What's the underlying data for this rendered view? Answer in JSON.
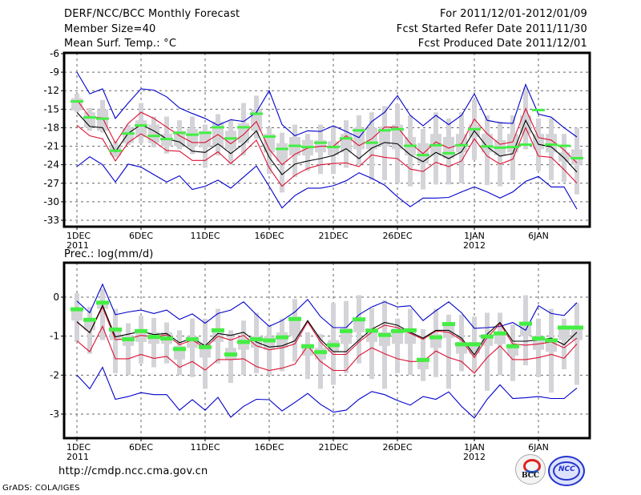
{
  "header": {
    "title": "DERF/NCC/BCC Monthly Forecast",
    "member_size": "Member Size=40",
    "variable": "Mean Surf. Temp.: °C",
    "period": "For 2011/12/01-2012/01/09",
    "started": "Fcst Started Refer Date 2011/11/30",
    "produced": "Fcst Produced Date 2011/12/01"
  },
  "footer": {
    "url": "http://cmdp.ncc.cma.gov.cn",
    "credit": "GrADS: COLA/IGES",
    "logo_bcc": "BCC",
    "logo_ncc": "NCC"
  },
  "colors": {
    "max_min": "#0000cc",
    "spread": "#dd1133",
    "mean": "#000000",
    "marker": "#44ee44",
    "box": "#d4d4d8"
  },
  "chart_data": [
    {
      "type": "line",
      "title": "Mean Surf. Temp.: °C",
      "xlabel": "",
      "ylabel": "",
      "ylim": [
        -33,
        -6
      ],
      "yticks": [
        -6,
        -9,
        -12,
        -15,
        -18,
        -21,
        -24,
        -27,
        -30,
        -33
      ],
      "ytick_labels": [
        "-6",
        "-9",
        "-12",
        "-15",
        "-18",
        "-21",
        "-24",
        "-27",
        "-30",
        "-33"
      ],
      "x_start": "2011-12-01",
      "x_days": 40,
      "xticks": [
        1,
        6,
        11,
        16,
        21,
        26,
        32,
        37
      ],
      "xtick_labels": [
        "1DEC",
        "6DEC",
        "11DEC",
        "16DEC",
        "21DEC",
        "26DEC",
        "1JAN",
        "6JAN"
      ],
      "xtick_sublabels": [
        "2011",
        "",
        "",
        "",
        "",
        "",
        "2012",
        ""
      ],
      "grid": true,
      "series": [
        {
          "name": "max",
          "color": "#0000cc",
          "values": [
            -9.0,
            -12.5,
            -11.7,
            -16.5,
            -14.0,
            -11.7,
            -11.9,
            -13.0,
            -14.8,
            -15.7,
            -16.5,
            -17.6,
            -16.7,
            -17.0,
            -15.5,
            -12.0,
            -17.5,
            -19.3,
            -18.5,
            -18.6,
            -17.7,
            -18.6,
            -19.6,
            -17.0,
            -15.5,
            -12.8,
            -16.0,
            -17.7,
            -16.0,
            -17.5,
            -16.0,
            -12.5,
            -16.8,
            -17.2,
            -17.3,
            -11.0,
            -15.8,
            -16.3,
            -18.0,
            -19.5
          ]
        },
        {
          "name": "upper",
          "color": "#dd1133",
          "values": [
            -13.5,
            -16.3,
            -16.4,
            -20.5,
            -17.3,
            -15.5,
            -16.5,
            -17.9,
            -19.3,
            -20.4,
            -20.4,
            -19.1,
            -20.6,
            -19.1,
            -17.0,
            -21.5,
            -24.0,
            -22.3,
            -21.3,
            -21.0,
            -21.0,
            -19.3,
            -20.9,
            -19.8,
            -17.9,
            -17.9,
            -20.5,
            -22.2,
            -20.3,
            -21.3,
            -20.6,
            -16.6,
            -19.0,
            -20.7,
            -20.3,
            -14.9,
            -19.6,
            -20.0,
            -21.6,
            -23.7
          ]
        },
        {
          "name": "mean",
          "color": "#000000",
          "values": [
            -15.5,
            -17.8,
            -18.0,
            -21.9,
            -18.9,
            -17.5,
            -18.5,
            -19.8,
            -20.3,
            -21.8,
            -22.0,
            -20.6,
            -22.2,
            -20.6,
            -18.5,
            -22.8,
            -25.6,
            -23.9,
            -23.4,
            -23.0,
            -22.5,
            -21.4,
            -23.0,
            -21.3,
            -20.4,
            -20.6,
            -22.4,
            -23.5,
            -22.0,
            -23.0,
            -21.9,
            -18.5,
            -21.1,
            -22.6,
            -22.2,
            -16.8,
            -20.7,
            -21.1,
            -22.9,
            -25.2
          ]
        },
        {
          "name": "lower",
          "color": "#dd1133",
          "values": [
            -17.6,
            -19.3,
            -19.8,
            -23.4,
            -20.4,
            -19.0,
            -20.2,
            -21.7,
            -21.8,
            -23.3,
            -23.3,
            -21.9,
            -23.8,
            -22.0,
            -20.0,
            -24.5,
            -27.5,
            -25.7,
            -24.6,
            -24.0,
            -23.8,
            -23.7,
            -24.3,
            -22.4,
            -22.8,
            -23.0,
            -24.7,
            -25.1,
            -23.6,
            -24.3,
            -23.4,
            -19.8,
            -22.6,
            -23.9,
            -23.1,
            -18.0,
            -22.6,
            -22.8,
            -24.8,
            -27.0
          ]
        },
        {
          "name": "min",
          "color": "#0000cc",
          "values": [
            -24.3,
            -22.7,
            -24.0,
            -26.8,
            -23.9,
            -24.4,
            -25.6,
            -26.8,
            -25.8,
            -28.0,
            -27.5,
            -26.5,
            -27.8,
            -26.0,
            -24.2,
            -27.5,
            -31.0,
            -29.0,
            -27.8,
            -27.8,
            -27.4,
            -26.6,
            -25.3,
            -26.2,
            -27.3,
            -29.2,
            -30.8,
            -29.4,
            -29.4,
            -29.3,
            -28.4,
            -27.6,
            -28.4,
            -29.4,
            -28.4,
            -26.7,
            -25.9,
            -27.6,
            -27.6,
            -31.2
          ]
        }
      ],
      "markers": {
        "name": "observed",
        "color": "#44ee44",
        "values": [
          -13.8,
          -16.4,
          -16.6,
          -21.8,
          -19.0,
          -17.7,
          -19.4,
          -19.9,
          -18.9,
          -19.2,
          -18.9,
          -18.0,
          -19.8,
          -18.0,
          -15.8,
          -19.5,
          -21.5,
          -21.0,
          -21.2,
          -20.5,
          -21.2,
          -19.8,
          -18.5,
          -20.5,
          -18.5,
          -18.3,
          -21.0,
          -22.5,
          -20.9,
          -22.2,
          -20.9,
          -18.3,
          -21.1,
          -21.3,
          -21.2,
          -20.8,
          -15.2,
          -20.8,
          -21.0,
          -23.0
        ]
      },
      "boxes": {
        "color": "#d4d4d8",
        "whisker_high": [
          -12.5,
          -14.8,
          -13.5,
          -20.2,
          -17.5,
          -14.0,
          -16.2,
          -16.2,
          -16.8,
          -16.2,
          -17.5,
          -15.8,
          -16.8,
          -14.0,
          -12.8,
          -18.0,
          -18.8,
          -17.5,
          -19.0,
          -17.5,
          -18.0,
          -16.8,
          -16.0,
          -15.5,
          -14.5,
          -14.2,
          -16.0,
          -18.2,
          -15.5,
          -16.5,
          -15.5,
          -13.5,
          -16.0,
          -17.0,
          -16.0,
          -11.5,
          -16.5,
          -16.5,
          -19.0,
          -18.0
        ],
        "q75": [
          -13.2,
          -15.5,
          -15.0,
          -20.8,
          -18.0,
          -16.8,
          -17.5,
          -19.0,
          -18.5,
          -18.2,
          -18.5,
          -17.0,
          -18.5,
          -17.3,
          -15.0,
          -19.0,
          -20.5,
          -19.5,
          -20.0,
          -20.0,
          -20.2,
          -19.0,
          -18.0,
          -18.0,
          -17.8,
          -17.5,
          -19.5,
          -20.5,
          -19.0,
          -19.5,
          -19.0,
          -17.5,
          -19.0,
          -20.0,
          -19.0,
          -16.0,
          -19.0,
          -19.0,
          -22.0,
          -21.5
        ],
        "q25": [
          -15.2,
          -18.0,
          -18.5,
          -22.5,
          -20.5,
          -19.5,
          -20.5,
          -21.0,
          -21.0,
          -21.0,
          -21.2,
          -21.0,
          -21.5,
          -20.5,
          -18.5,
          -22.0,
          -23.5,
          -22.5,
          -22.5,
          -22.0,
          -22.5,
          -22.0,
          -21.5,
          -21.5,
          -21.0,
          -21.5,
          -22.5,
          -23.8,
          -22.5,
          -23.0,
          -22.0,
          -19.5,
          -22.0,
          -22.5,
          -22.0,
          -19.0,
          -21.5,
          -22.0,
          -23.5,
          -24.0
        ],
        "whisker_low": [
          -15.5,
          -18.5,
          -18.8,
          -22.8,
          -20.8,
          -20.5,
          -21.2,
          -22.2,
          -21.5,
          -22.3,
          -24.5,
          -22.5,
          -24.0,
          -22.5,
          -19.8,
          -25.5,
          -28.5,
          -26.0,
          -25.0,
          -25.5,
          -25.5,
          -24.5,
          -24.0,
          -26.5,
          -26.5,
          -27.0,
          -27.5,
          -28.0,
          -27.2,
          -27.2,
          -27.0,
          -23.2,
          -27.3,
          -27.5,
          -26.5,
          -21.5,
          -25.0,
          -26.5,
          -26.8,
          -28.8
        ]
      }
    },
    {
      "type": "line",
      "title": "Prec.: log(mm/d)",
      "xlabel": "",
      "ylabel": "",
      "ylim": [
        -3.6,
        0.8
      ],
      "yticks": [
        0,
        -1,
        -2,
        -3
      ],
      "ytick_labels": [
        "0",
        "-1",
        "-2",
        "-3"
      ],
      "x_start": "2011-12-01",
      "x_days": 40,
      "xticks": [
        1,
        6,
        11,
        16,
        21,
        26,
        32,
        37
      ],
      "xtick_labels": [
        "1DEC",
        "6DEC",
        "11DEC",
        "16DEC",
        "21DEC",
        "26DEC",
        "1JAN",
        "6JAN"
      ],
      "xtick_sublabels": [
        "2011",
        "",
        "",
        "",
        "",
        "",
        "2012",
        ""
      ],
      "grid": true,
      "series": [
        {
          "name": "max",
          "color": "#0000cc",
          "values": [
            -0.1,
            -0.4,
            0.33,
            -0.45,
            -0.38,
            -0.33,
            -0.42,
            -0.33,
            -0.57,
            -0.43,
            -0.67,
            -0.42,
            -0.33,
            -0.12,
            -0.45,
            -0.75,
            -0.6,
            -0.38,
            -0.06,
            -0.5,
            -0.78,
            -0.78,
            -0.45,
            -0.25,
            -0.12,
            -0.25,
            -0.22,
            -0.6,
            -0.35,
            -0.12,
            -0.4,
            -0.8,
            -0.78,
            -0.75,
            -0.65,
            -0.85,
            -0.22,
            -0.42,
            -0.47,
            -0.14
          ]
        },
        {
          "name": "upper",
          "color": "#dd1133",
          "values": [
            -0.64,
            -0.91,
            -0.25,
            -1.09,
            -1.07,
            -0.98,
            -1.02,
            -0.97,
            -1.22,
            -1.1,
            -1.3,
            -1.0,
            -1.1,
            -0.98,
            -1.25,
            -1.35,
            -1.3,
            -1.2,
            -0.63,
            -1.15,
            -1.47,
            -1.47,
            -1.15,
            -0.9,
            -0.72,
            -0.78,
            -0.93,
            -1.08,
            -0.87,
            -0.9,
            -1.1,
            -1.55,
            -1.04,
            -0.68,
            -1.2,
            -1.23,
            -1.2,
            -1.15,
            -1.3,
            -1.05
          ]
        },
        {
          "name": "mean",
          "color": "#000000",
          "values": [
            -0.63,
            -0.91,
            -0.21,
            -1.02,
            -0.95,
            -0.88,
            -0.96,
            -0.93,
            -1.17,
            -1.05,
            -1.25,
            -0.93,
            -0.98,
            -0.9,
            -1.15,
            -1.28,
            -1.25,
            -1.12,
            -0.6,
            -1.08,
            -1.4,
            -1.4,
            -1.1,
            -0.82,
            -0.65,
            -0.72,
            -0.9,
            -1.05,
            -0.85,
            -0.85,
            -1.05,
            -1.48,
            -0.95,
            -0.65,
            -1.13,
            -1.13,
            -1.1,
            -1.05,
            -1.22,
            -0.9
          ]
        },
        {
          "name": "lower",
          "color": "#dd1133",
          "values": [
            -1.12,
            -1.4,
            -0.75,
            -1.58,
            -1.58,
            -1.47,
            -1.57,
            -1.52,
            -1.8,
            -1.65,
            -1.87,
            -1.6,
            -1.6,
            -1.58,
            -1.78,
            -1.88,
            -1.82,
            -1.72,
            -1.25,
            -1.65,
            -1.88,
            -1.88,
            -1.5,
            -1.3,
            -1.45,
            -1.58,
            -1.65,
            -1.65,
            -1.38,
            -1.55,
            -1.65,
            -1.95,
            -1.55,
            -1.25,
            -1.6,
            -1.6,
            -1.55,
            -1.47,
            -1.57,
            -1.2
          ]
        },
        {
          "name": "min",
          "color": "#0000cc",
          "values": [
            -2.0,
            -2.35,
            -1.8,
            -2.62,
            -2.55,
            -2.45,
            -2.5,
            -2.5,
            -2.9,
            -2.63,
            -2.9,
            -2.57,
            -3.08,
            -2.8,
            -2.62,
            -2.63,
            -2.92,
            -2.7,
            -2.47,
            -2.75,
            -2.95,
            -2.9,
            -2.62,
            -2.42,
            -2.5,
            -2.65,
            -2.77,
            -2.55,
            -2.62,
            -2.43,
            -2.8,
            -3.1,
            -2.62,
            -2.25,
            -2.6,
            -2.58,
            -2.55,
            -2.6,
            -2.6,
            -2.33
          ]
        }
      ],
      "markers": {
        "name": "observed",
        "color": "#44ee44",
        "values": [
          -0.3,
          -0.57,
          -0.13,
          -0.82,
          -1.07,
          -0.86,
          -1.01,
          -1.05,
          -1.32,
          -1.07,
          -1.27,
          -0.84,
          -1.46,
          -1.14,
          -1.07,
          -1.1,
          -1.02,
          -0.55,
          -1.25,
          -1.4,
          -1.22,
          -0.86,
          -0.56,
          -0.85,
          -0.96,
          -0.86,
          -0.84,
          -1.6,
          -1.02,
          -0.68,
          -1.2,
          -1.2,
          -1.0,
          -0.92,
          -1.25,
          -0.67,
          -1.05,
          -1.1,
          -0.77,
          -0.77
        ]
      },
      "boxes": {
        "color": "#d4d4d8",
        "whisker_high": [
          0.1,
          -0.25,
          0.22,
          -0.3,
          -0.67,
          -0.48,
          -0.53,
          -0.65,
          -0.85,
          -0.55,
          -0.55,
          -0.3,
          -0.85,
          -0.6,
          -0.4,
          -0.7,
          -0.55,
          -0.05,
          -0.9,
          -0.95,
          -0.15,
          -0.1,
          0.05,
          -0.28,
          -0.08,
          -0.55,
          -0.3,
          -0.82,
          -0.3,
          -0.45,
          -0.45,
          -0.5,
          -0.4,
          -0.4,
          -0.7,
          0.05,
          -0.55,
          -0.3,
          -0.55,
          -0.15
        ],
        "q75": [
          -0.3,
          -0.55,
          -0.13,
          -0.8,
          -1.0,
          -0.85,
          -0.9,
          -0.9,
          -1.25,
          -1.0,
          -1.2,
          -0.8,
          -1.3,
          -1.05,
          -1.0,
          -1.0,
          -0.9,
          -0.5,
          -1.2,
          -1.3,
          -1.1,
          -0.8,
          -0.55,
          -0.8,
          -0.9,
          -0.8,
          -0.8,
          -1.55,
          -0.95,
          -0.7,
          -1.15,
          -1.15,
          -0.95,
          -0.9,
          -1.2,
          -0.65,
          -1.0,
          -1.05,
          -0.75,
          -0.75
        ],
        "q25": [
          -0.6,
          -0.85,
          -0.3,
          -1.1,
          -1.25,
          -1.15,
          -1.2,
          -1.2,
          -1.6,
          -1.3,
          -1.55,
          -1.15,
          -1.6,
          -1.35,
          -1.3,
          -1.35,
          -1.3,
          -1.0,
          -1.5,
          -1.6,
          -1.4,
          -1.2,
          -0.9,
          -1.15,
          -1.25,
          -1.2,
          -1.2,
          -1.85,
          -1.3,
          -1.05,
          -1.45,
          -1.45,
          -1.25,
          -1.2,
          -1.5,
          -1.0,
          -1.35,
          -1.4,
          -1.1,
          -1.1
        ],
        "whisker_low": [
          -1.15,
          -1.45,
          -1.1,
          -1.95,
          -2.0,
          -1.7,
          -1.8,
          -1.7,
          -2.0,
          -2.05,
          -2.35,
          -1.7,
          -2.2,
          -2.0,
          -1.95,
          -2.0,
          -1.9,
          -1.65,
          -2.1,
          -2.35,
          -2.25,
          -1.95,
          -1.7,
          -2.1,
          -2.35,
          -1.95,
          -2.0,
          -2.15,
          -2.05,
          -2.35,
          -1.9,
          -1.9,
          -2.4,
          -2.0,
          -2.15,
          -1.75,
          -2.05,
          -2.45,
          -1.85,
          -2.25
        ]
      }
    }
  ]
}
